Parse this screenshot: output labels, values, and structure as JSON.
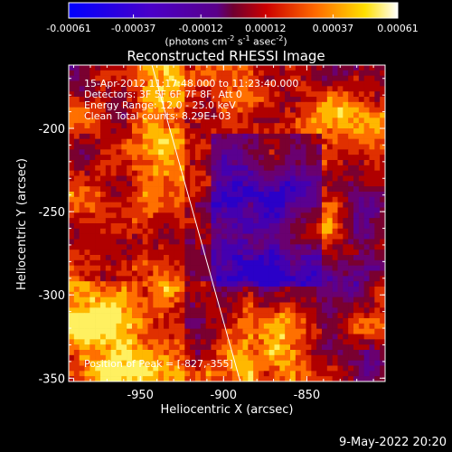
{
  "chart_data": {
    "type": "heatmap",
    "title": "Reconstructed RHESSI Image",
    "xlabel": "Heliocentric X (arcsec)",
    "ylabel": "Heliocentric Y (arcsec)",
    "xlim": [
      -993,
      -803
    ],
    "ylim": [
      -352,
      -162
    ],
    "xticks": [
      -950,
      -900,
      -850
    ],
    "yticks": [
      -200,
      -250,
      -300,
      -350
    ],
    "xtick_labels": [
      "-950",
      "-900",
      "-850"
    ],
    "ytick_labels": [
      "-200",
      "-250",
      "-300",
      "-350"
    ],
    "colorbar": {
      "ticks": [
        -0.00061,
        -0.00037,
        -0.00012,
        0.00012,
        0.00037,
        0.00061
      ],
      "tick_labels": [
        "-0.00061",
        "-0.00037",
        "-0.00012",
        "0.00012",
        "0.00037",
        "0.00061"
      ],
      "range": [
        -0.00061,
        0.00061
      ],
      "colors": [
        "#0000ff",
        "#4400cc",
        "#6600aa",
        "#cc0000",
        "#ff6600",
        "#ffee00",
        "#ffffff"
      ]
    },
    "limb_line": {
      "x": [
        -943,
        -890
      ],
      "y": [
        -162,
        -352
      ]
    },
    "peak_marker": {
      "x": -827,
      "y": -355
    }
  },
  "colorbar_unit": {
    "prefix": "(photons cm",
    "exp1": "-2",
    "mid1": " s",
    "exp2": "-1",
    "mid2": " asec",
    "exp3": "-2",
    "suffix": ")"
  },
  "info": {
    "time": "15-Apr-2012 11:17:48.000 to 11:23:40.000",
    "detectors": "Detectors: 3F 5F 6F 7F 8F, Att 0",
    "energy": "Energy Range: 12.0 - 25.0 keV",
    "clean": "Clean    Total counts: 8.29E+03",
    "peak": "Position of Peak = [-827,-355]"
  },
  "footer": {
    "date": "9-May-2022 20:20"
  }
}
